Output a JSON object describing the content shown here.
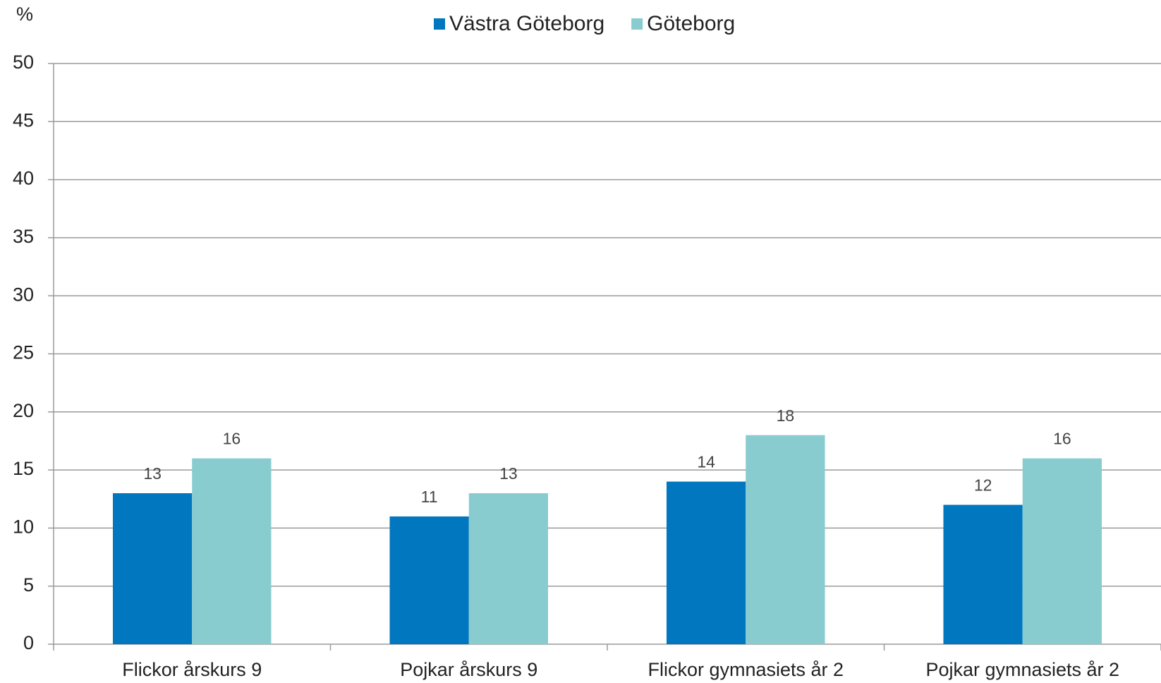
{
  "chart_data": {
    "type": "bar",
    "y_label": "%",
    "categories": [
      "Flickor årskurs 9",
      "Pojkar årskurs 9",
      "Flickor gymnasiets år 2",
      "Pojkar gymnasiets år 2"
    ],
    "series": [
      {
        "name": "Västra Göteborg",
        "color": "#0077be",
        "values": [
          13,
          11,
          14,
          12
        ]
      },
      {
        "name": "Göteborg",
        "color": "#88cccf",
        "values": [
          16,
          13,
          18,
          16
        ]
      }
    ],
    "ylim": [
      0,
      50
    ],
    "yticks": [
      0,
      5,
      10,
      15,
      20,
      25,
      30,
      35,
      40,
      45,
      50
    ],
    "grid": true,
    "legend": "top"
  }
}
